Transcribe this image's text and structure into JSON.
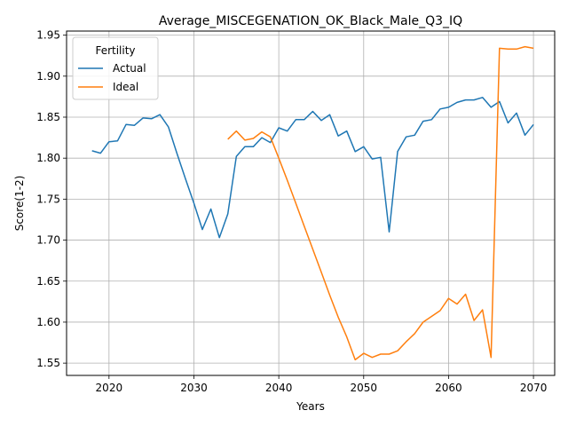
{
  "chart_data": {
    "type": "line",
    "title": "Average_MISCEGENATION_OK_Black_Male_Q3_IQ",
    "xlabel": "Years",
    "ylabel": "Score(1-2)",
    "xlim": [
      2015,
      2072.5
    ],
    "ylim": [
      1.535,
      1.955
    ],
    "xticks": [
      2020,
      2030,
      2040,
      2050,
      2060,
      2070
    ],
    "yticks": [
      "1.55",
      "1.60",
      "1.65",
      "1.70",
      "1.75",
      "1.80",
      "1.85",
      "1.90",
      "1.95"
    ],
    "grid": true,
    "legend": {
      "title": "Fertility",
      "placement": "top-left"
    },
    "series": [
      {
        "name": "Actual",
        "color": "#1f77b4",
        "x": [
          2018,
          2019,
          2020,
          2021,
          2022,
          2023,
          2024,
          2025,
          2026,
          2027,
          2028,
          2029,
          2030,
          2031,
          2032,
          2033,
          2034,
          2035,
          2036,
          2037,
          2038,
          2039,
          2040,
          2041,
          2042,
          2043,
          2044,
          2045,
          2046,
          2047,
          2048,
          2049,
          2050,
          2051,
          2052,
          2053,
          2054,
          2055,
          2056,
          2057,
          2058,
          2059,
          2060,
          2061,
          2062,
          2063,
          2064,
          2065,
          2066,
          2067,
          2068,
          2069,
          2070
        ],
        "y": [
          1.809,
          1.806,
          1.82,
          1.821,
          1.841,
          1.84,
          1.849,
          1.848,
          1.853,
          1.838,
          1.806,
          1.775,
          1.745,
          1.713,
          1.738,
          1.703,
          1.732,
          1.802,
          1.814,
          1.814,
          1.825,
          1.819,
          1.837,
          1.833,
          1.847,
          1.847,
          1.857,
          1.846,
          1.853,
          1.827,
          1.833,
          1.808,
          1.814,
          1.799,
          1.801,
          1.71,
          1.808,
          1.826,
          1.828,
          1.845,
          1.847,
          1.86,
          1.862,
          1.868,
          1.871,
          1.871,
          1.874,
          1.862,
          1.869,
          1.843,
          1.855,
          1.828,
          1.841
        ]
      },
      {
        "name": "Ideal",
        "color": "#ff7f0e",
        "x": [
          2034,
          2035,
          2036,
          2037,
          2038,
          2039,
          2040,
          2041,
          2042,
          2043,
          2044,
          2045,
          2046,
          2047,
          2048,
          2049,
          2050,
          2051,
          2052,
          2053,
          2054,
          2055,
          2056,
          2057,
          2058,
          2059,
          2060,
          2061,
          2062,
          2063,
          2064,
          2065,
          2066,
          2067,
          2068,
          2069,
          2070
        ],
        "y": [
          1.823,
          1.833,
          1.822,
          1.824,
          1.832,
          1.826,
          1.8,
          1.773,
          1.745,
          1.717,
          1.689,
          1.661,
          1.633,
          1.606,
          1.582,
          1.554,
          1.562,
          1.557,
          1.561,
          1.561,
          1.565,
          1.576,
          1.586,
          1.6,
          1.607,
          1.614,
          1.629,
          1.622,
          1.634,
          1.602,
          1.615,
          1.557,
          1.934,
          1.933,
          1.933,
          1.936,
          1.934
        ]
      }
    ]
  }
}
